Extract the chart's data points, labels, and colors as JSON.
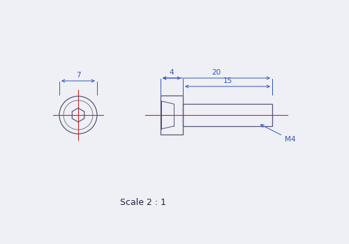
{
  "bg_color": "#eef0f5",
  "line_color": "#555577",
  "dim_color": "#3355bb",
  "center_color": "#cc2222",
  "scale_text": "Scale 2 : 1",
  "dim_7": "7",
  "dim_4": "4",
  "dim_20": "20",
  "dim_15": "15",
  "label_m4": "M4",
  "font_size": 7.5,
  "scale_font_size": 9,
  "lw": 0.9,
  "dlw": 0.7
}
